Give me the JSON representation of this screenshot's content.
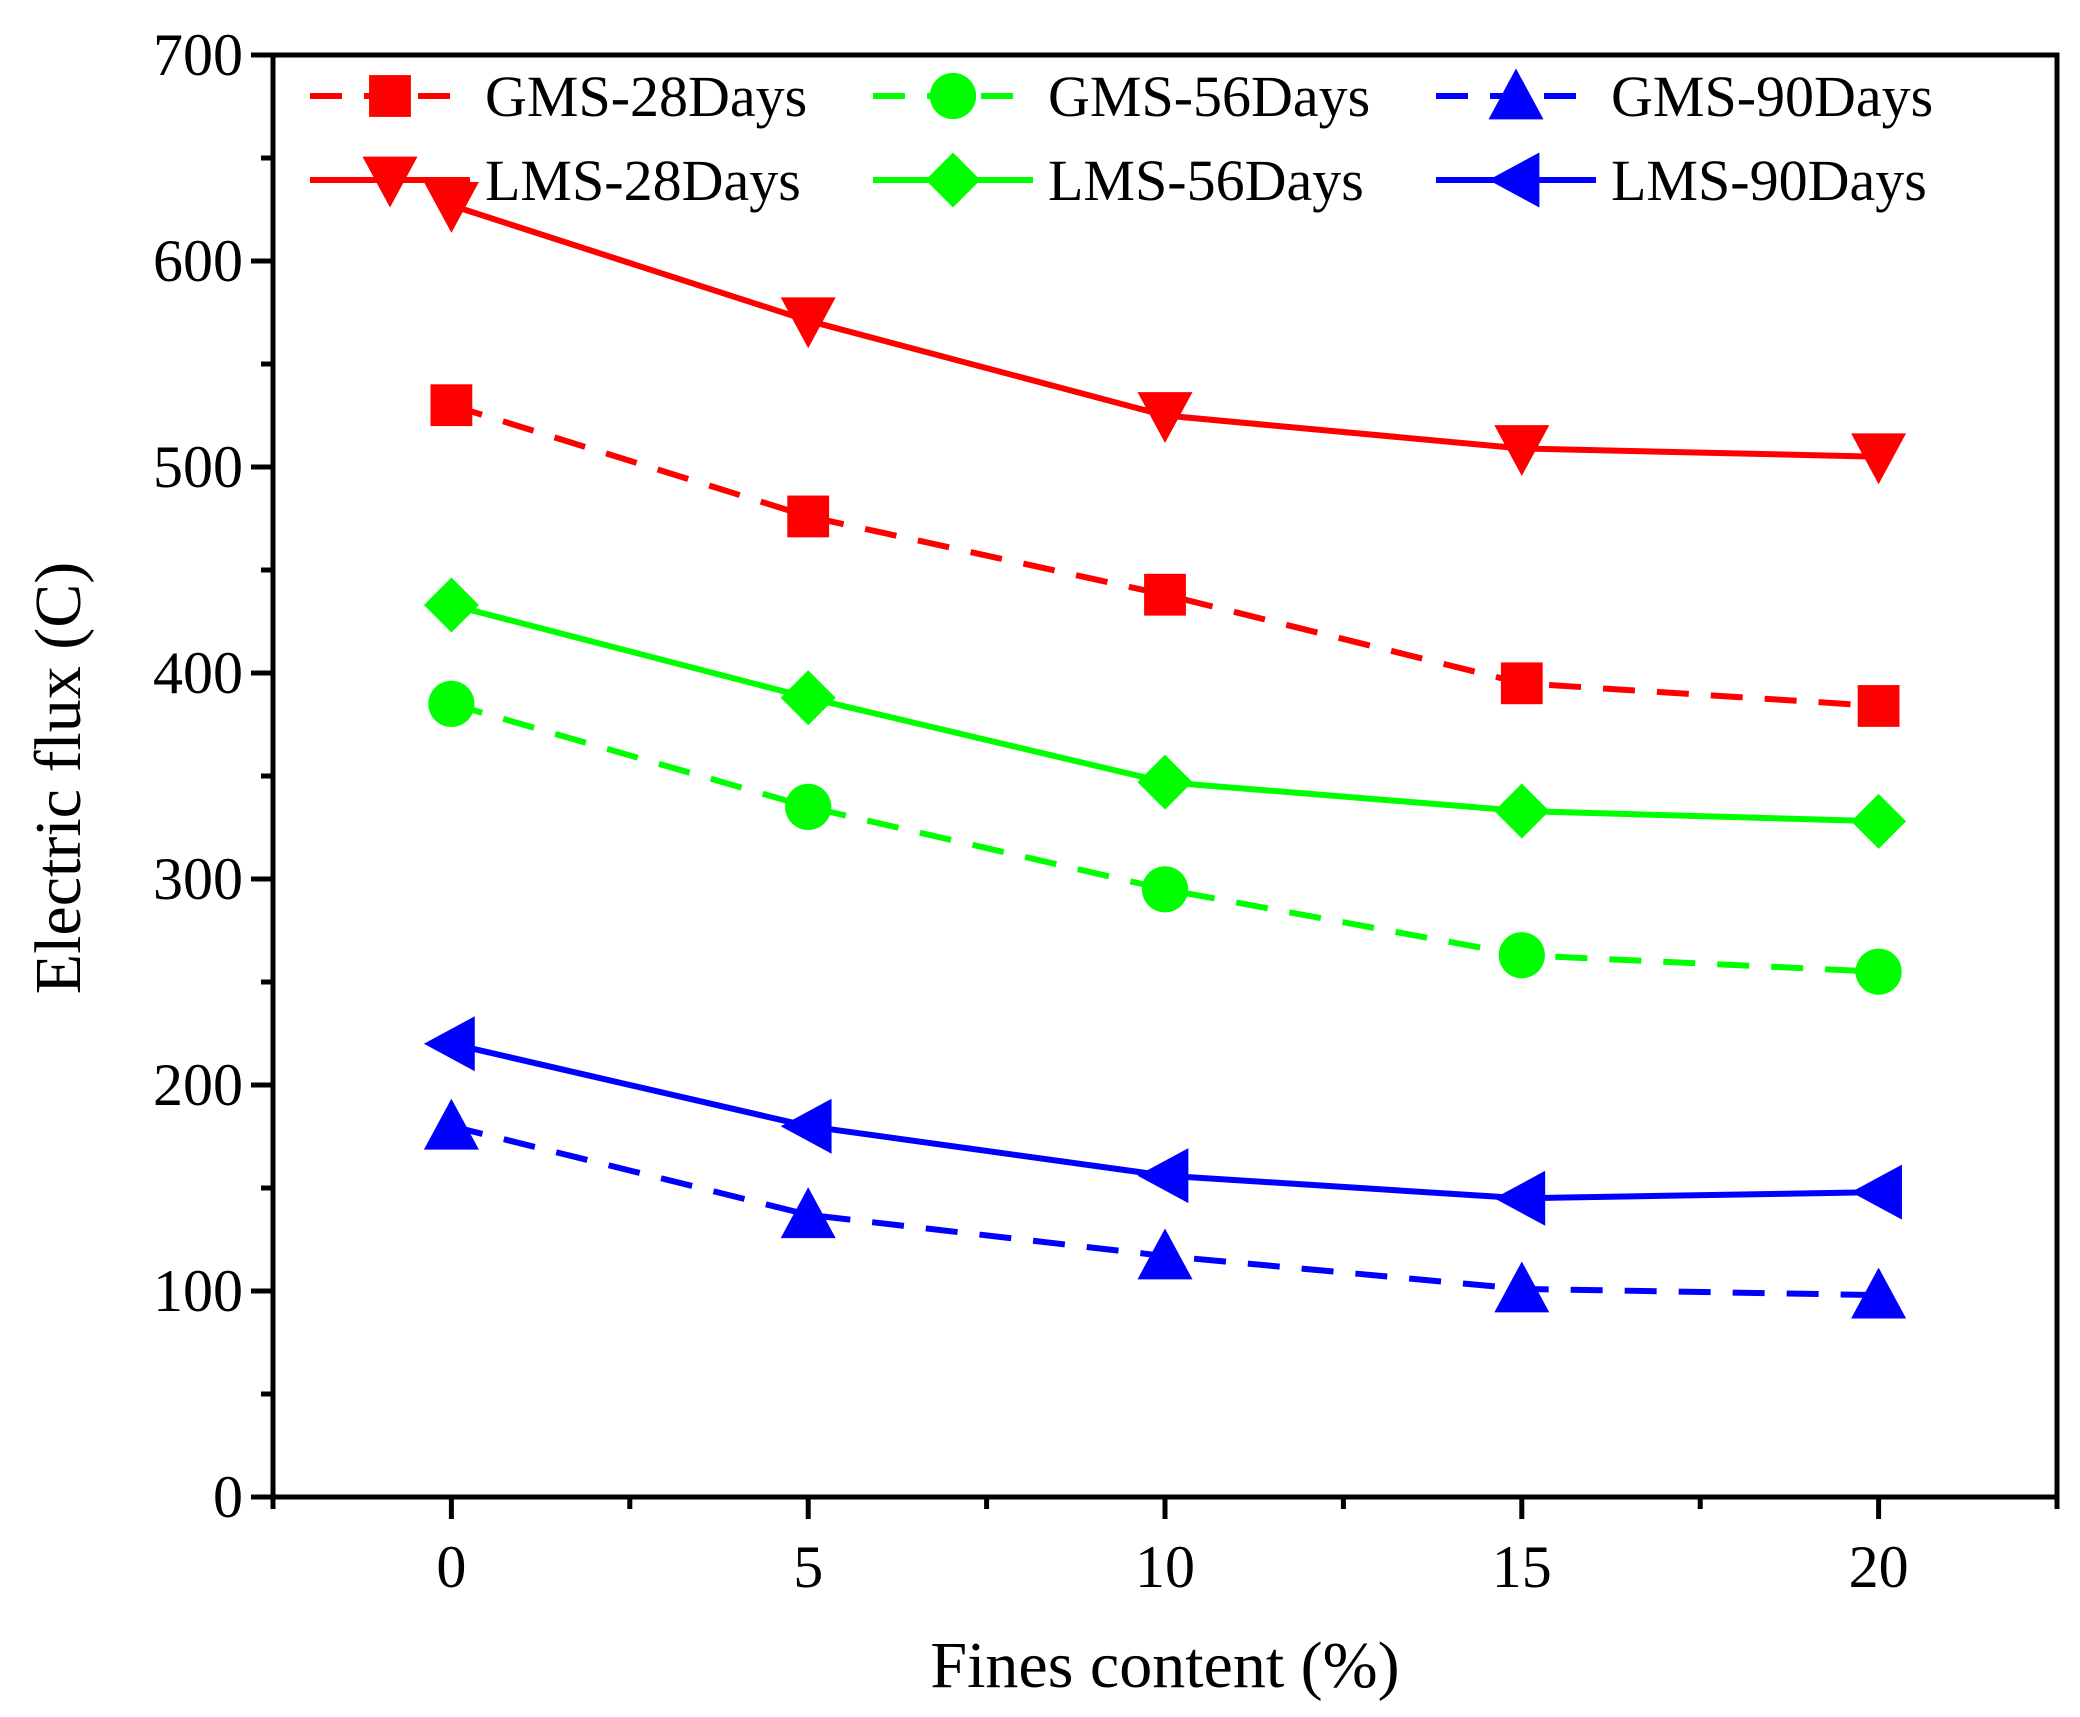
{
  "chart_data": {
    "type": "line",
    "title": "",
    "xlabel": "Fines content (%)",
    "ylabel": "Electric flux (C)",
    "x": [
      0,
      5,
      10,
      15,
      20
    ],
    "xlim": [
      -2.5,
      22.5
    ],
    "ylim": [
      0,
      700
    ],
    "xticks": [
      0,
      5,
      10,
      15,
      20
    ],
    "yticks": [
      0,
      100,
      200,
      300,
      400,
      500,
      600,
      700
    ],
    "grid": false,
    "legend_position": "top",
    "series": [
      {
        "name": "GMS-28Days",
        "color": "#ff0000",
        "dash": "dashed",
        "marker": "square",
        "values": [
          530,
          476,
          438,
          395,
          384
        ]
      },
      {
        "name": "GMS-56Days",
        "color": "#00ff00",
        "dash": "dashed",
        "marker": "circle",
        "values": [
          385,
          335,
          295,
          263,
          255
        ]
      },
      {
        "name": "GMS-90Days",
        "color": "#0000ff",
        "dash": "dashed",
        "marker": "triangle-up",
        "values": [
          180,
          137,
          117,
          101,
          98
        ]
      },
      {
        "name": "LMS-28Days",
        "color": "#ff0000",
        "dash": "solid",
        "marker": "triangle-down",
        "values": [
          627,
          571,
          525,
          509,
          505
        ]
      },
      {
        "name": "LMS-56Days",
        "color": "#00ff00",
        "dash": "solid",
        "marker": "diamond",
        "values": [
          433,
          388,
          347,
          333,
          328
        ]
      },
      {
        "name": "LMS-90Days",
        "color": "#0000ff",
        "dash": "solid",
        "marker": "triangle-left",
        "values": [
          220,
          180,
          156,
          145,
          148
        ]
      }
    ]
  }
}
